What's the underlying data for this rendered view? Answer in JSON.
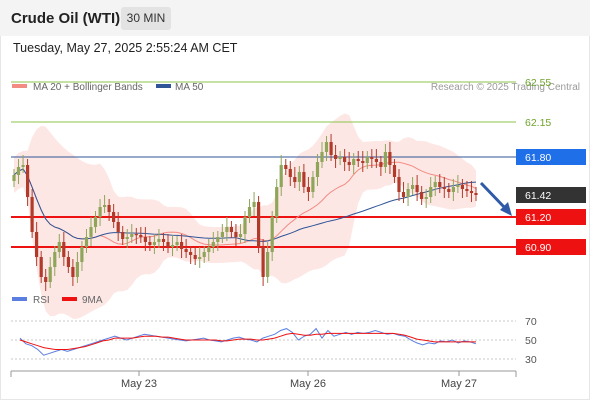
{
  "header": {
    "title": "Crude Oil (WTI)",
    "timeframe": "30 MIN",
    "datetime": "Tuesday, May 27, 2025 2:55:24 AM CET"
  },
  "legend": {
    "ma20_label": "MA 20 + Bollinger Bands",
    "ma20_color": "#f28b82",
    "ma50_label": "MA 50",
    "ma50_color": "#2f5597",
    "copyright": "Research © 2025 Trading Central"
  },
  "levels": [
    {
      "value": "62.55",
      "color": "#8cc34a",
      "style": "text"
    },
    {
      "value": "62.15",
      "color": "#8cc34a",
      "style": "text"
    },
    {
      "value": "61.80",
      "color": "#1e6fe8",
      "style": "box"
    },
    {
      "value": "61.42",
      "color": "#333333",
      "style": "box"
    },
    {
      "value": "61.20",
      "color": "#ee1111",
      "style": "box"
    },
    {
      "value": "60.90",
      "color": "#ee1111",
      "style": "box"
    }
  ],
  "rsi_legend": {
    "rsi_label": "RSI",
    "rsi_color": "#5b7fe0",
    "ma_label": "9MA",
    "ma_color": "#ee1111",
    "levels": [
      "70",
      "50",
      "30"
    ]
  },
  "xaxis": {
    "labels": [
      "May 23",
      "May 26",
      "May 27"
    ]
  },
  "chart_data": {
    "type": "candlestick",
    "title": "Crude Oil (WTI)",
    "timeframe": "30 MIN",
    "ylim": [
      60.25,
      62.75
    ],
    "levels": {
      "resistance": [
        62.55,
        62.15,
        61.8
      ],
      "current": 61.42,
      "support": [
        61.2,
        60.9
      ]
    },
    "x_labels": [
      "May 23",
      "May 26",
      "May 27"
    ],
    "close_series": [
      61.62,
      61.7,
      61.72,
      61.4,
      61.05,
      60.8,
      60.6,
      60.55,
      60.7,
      60.85,
      60.95,
      60.8,
      60.7,
      60.6,
      60.75,
      60.9,
      61.0,
      61.1,
      61.2,
      61.3,
      61.32,
      61.25,
      61.15,
      61.05,
      60.98,
      61.0,
      61.03,
      61.02,
      61.0,
      60.95,
      60.92,
      60.95,
      60.98,
      60.95,
      60.9,
      60.92,
      60.95,
      60.88,
      60.85,
      60.82,
      60.78,
      60.8,
      60.85,
      60.9,
      60.95,
      61.0,
      61.05,
      61.1,
      61.05,
      61.0,
      61.03,
      61.2,
      61.3,
      61.35,
      60.9,
      60.6,
      60.85,
      61.2,
      61.5,
      61.72,
      61.68,
      61.6,
      61.55,
      61.65,
      61.5,
      61.45,
      61.6,
      61.75,
      61.85,
      61.95,
      61.82,
      61.78,
      61.8,
      61.75,
      61.72,
      61.78,
      61.76,
      61.74,
      61.8,
      61.78,
      61.75,
      61.7,
      61.85,
      61.72,
      61.6,
      61.45,
      61.4,
      61.48,
      61.52,
      61.45,
      61.38,
      61.4,
      61.5,
      61.55,
      61.5,
      61.48,
      61.45,
      61.5,
      61.52,
      61.48,
      61.46,
      61.44,
      61.42
    ],
    "rsi": {
      "levels": [
        70,
        50,
        30
      ],
      "rsi_series": [
        52,
        46,
        44,
        40,
        34,
        36,
        38,
        40,
        38,
        40,
        42,
        44,
        46,
        48,
        50,
        52,
        54,
        52,
        50,
        52,
        54,
        56,
        55,
        54,
        53,
        52,
        51,
        50,
        49,
        50,
        51,
        52,
        50,
        49,
        48,
        50,
        52,
        53,
        51,
        50,
        48,
        52,
        54,
        56,
        60,
        62,
        58,
        50,
        54,
        56,
        62,
        52,
        60,
        54,
        56,
        58,
        56,
        58,
        57,
        58,
        60,
        58,
        56,
        57,
        55,
        54,
        50,
        47,
        45,
        47,
        46,
        49,
        48,
        50,
        47,
        49,
        48,
        46
      ],
      "ma_series": [
        50,
        48,
        46,
        44,
        42,
        41,
        40,
        40,
        40,
        41,
        42,
        43,
        45,
        47,
        49,
        50,
        52,
        52,
        52,
        52,
        53,
        54,
        54,
        54,
        53,
        53,
        52,
        51,
        50,
        50,
        50,
        50,
        50,
        50,
        49,
        49,
        50,
        51,
        51,
        51,
        50,
        50,
        51,
        52,
        54,
        56,
        57,
        56,
        55,
        55,
        56,
        56,
        57,
        57,
        57,
        57,
        57,
        57,
        57,
        57,
        57,
        57,
        57,
        57,
        56,
        55,
        53,
        51,
        50,
        49,
        48,
        48,
        48,
        48,
        48,
        48,
        48,
        48
      ]
    },
    "legend": [
      "MA 20 + Bollinger Bands",
      "MA 50"
    ]
  }
}
